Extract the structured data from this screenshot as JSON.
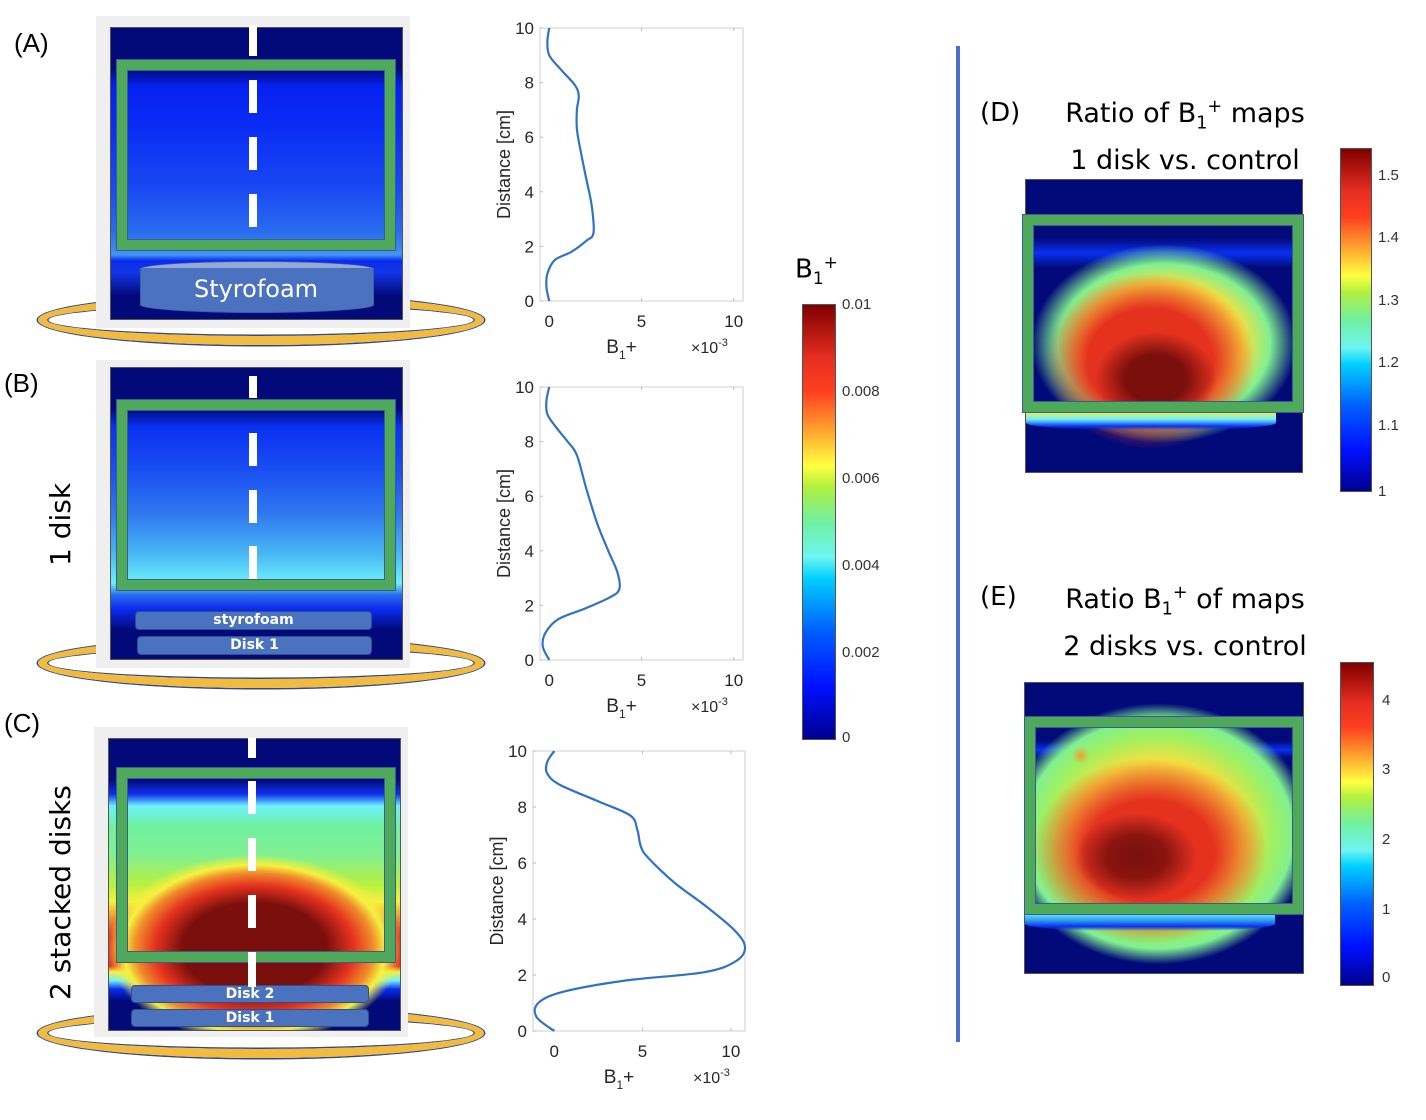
{
  "figure": {
    "panels": {
      "A": {
        "label": "(A)",
        "side_label": "",
        "disk_labels": [
          "Styrofoam"
        ]
      },
      "B": {
        "label": "(B)",
        "side_label": "1 disk",
        "disk_labels": [
          "styrofoam",
          "Disk 1"
        ]
      },
      "C": {
        "label": "(C)",
        "side_label": "2 stacked disks",
        "disk_labels": [
          "Disk 2",
          "Disk 1"
        ]
      },
      "D": {
        "label": "(D)",
        "title_line1_pre": "Ratio of B",
        "title_sub": "1",
        "title_sup": "+",
        "title_line1_post": " maps",
        "title_line2": "1 disk vs. control"
      },
      "E": {
        "label": "(E)",
        "title_line1_pre": "Ratio B",
        "title_sub": "1",
        "title_sup": "+",
        "title_line1_post": " of maps",
        "title_line2": "2 disks vs. control"
      }
    },
    "colorbar_main": {
      "title_main": "B",
      "title_sub": "1",
      "title_sup": "+",
      "ticks": [
        "0.01",
        "0.008",
        "0.006",
        "0.004",
        "0.002",
        "0"
      ],
      "range": [
        0,
        0.01
      ]
    },
    "colorbar_D": {
      "ticks": [
        "1.5",
        "1.4",
        "1.3",
        "1.2",
        "1.1",
        "1"
      ],
      "range": [
        1,
        1.55
      ]
    },
    "colorbar_E": {
      "ticks": [
        "4",
        "3",
        "2",
        "1",
        "0"
      ],
      "range": [
        0,
        4.6
      ]
    },
    "colors": {
      "roi_green": "#4fa95a",
      "ring_gold": "#f2bb3e",
      "curve_blue": "#2f73c4",
      "divider_blue": "#4a72c4"
    }
  },
  "chart_data": [
    {
      "type": "line",
      "panel": "A",
      "title": "",
      "xlabel": "B1+",
      "xlabel_main": "B",
      "xlabel_sub": "1",
      "xlabel_post": "+",
      "x_multiplier": "×10",
      "x_multiplier_exp": "-3",
      "ylabel": "Distance [cm]",
      "xlim": [
        -0.5,
        10.5
      ],
      "ylim": [
        0,
        10
      ],
      "xticks": [
        "0",
        "5",
        "10"
      ],
      "yticks": [
        "0",
        "2",
        "4",
        "6",
        "8",
        "10"
      ],
      "series": [
        {
          "name": "B1+ profile",
          "x": [
            0.0,
            -0.15,
            -0.1,
            0.3,
            1.2,
            2.0,
            2.4,
            2.3,
            2.0,
            1.7,
            1.5,
            1.5,
            1.6,
            1.4,
            0.6,
            0.0,
            -0.1,
            0.0
          ],
          "y": [
            0.0,
            0.5,
            1.0,
            1.5,
            1.8,
            2.2,
            2.5,
            3.5,
            4.5,
            5.5,
            6.3,
            7.0,
            7.5,
            7.9,
            8.5,
            9.0,
            9.5,
            10.0
          ]
        }
      ]
    },
    {
      "type": "line",
      "panel": "B",
      "title": "",
      "xlabel": "B1+",
      "xlabel_main": "B",
      "xlabel_sub": "1",
      "xlabel_post": "+",
      "x_multiplier": "×10",
      "x_multiplier_exp": "-3",
      "ylabel": "Distance [cm]",
      "xlim": [
        -0.5,
        10.5
      ],
      "ylim": [
        0,
        10
      ],
      "xticks": [
        "0",
        "5",
        "10"
      ],
      "yticks": [
        "0",
        "2",
        "4",
        "6",
        "8",
        "10"
      ],
      "series": [
        {
          "name": "B1+ profile",
          "x": [
            0.0,
            -0.35,
            -0.2,
            0.5,
            2.0,
            3.3,
            3.8,
            3.7,
            3.2,
            2.6,
            2.0,
            1.5,
            1.0,
            0.4,
            -0.1,
            -0.15,
            0.0
          ],
          "y": [
            0.0,
            0.5,
            1.0,
            1.5,
            1.9,
            2.3,
            2.6,
            3.2,
            4.0,
            5.0,
            6.3,
            7.5,
            8.0,
            8.5,
            9.0,
            9.5,
            10.0
          ]
        }
      ]
    },
    {
      "type": "line",
      "panel": "C",
      "title": "",
      "xlabel": "B1+",
      "xlabel_main": "B",
      "xlabel_sub": "1",
      "xlabel_post": "+",
      "x_multiplier": "×10",
      "x_multiplier_exp": "-3",
      "ylabel": "Distance [cm]",
      "xlim": [
        -1.2,
        10.8
      ],
      "ylim": [
        0,
        10
      ],
      "xticks": [
        "0",
        "5",
        "10"
      ],
      "yticks": [
        "0",
        "2",
        "4",
        "6",
        "8",
        "10"
      ],
      "series": [
        {
          "name": "B1+ profile",
          "x": [
            0.0,
            -1.0,
            -0.9,
            0.5,
            4.0,
            8.5,
            10.3,
            10.8,
            10.2,
            8.5,
            6.8,
            5.3,
            4.9,
            4.7,
            4.3,
            2.5,
            0.3,
            -0.4,
            -0.4,
            0.0
          ],
          "y": [
            0.0,
            0.5,
            1.0,
            1.4,
            1.8,
            2.1,
            2.5,
            3.0,
            3.6,
            4.5,
            5.3,
            6.2,
            6.6,
            7.2,
            7.7,
            8.2,
            8.8,
            9.2,
            9.6,
            10.0
          ]
        }
      ]
    }
  ]
}
